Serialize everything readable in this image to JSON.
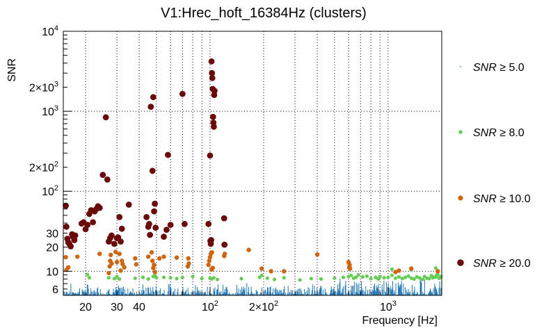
{
  "chart_data": {
    "type": "scatter",
    "title": "V1:Hrec_hoft_16384Hz (clusters)",
    "xlabel": "Frequency [Hz]",
    "ylabel": "SNR",
    "x_scale": "log",
    "y_scale": "log",
    "xlim": [
      15,
      2000
    ],
    "ylim": [
      5,
      10000
    ],
    "grid": true,
    "legend_position": "right",
    "x_tick_labels": [
      {
        "value": 20,
        "label": "20"
      },
      {
        "value": 30,
        "label": "30"
      },
      {
        "value": 40,
        "label": "40"
      },
      {
        "value": 100,
        "label": "10",
        "sup": "2"
      },
      {
        "value": 200,
        "label": "2×10",
        "sup": "2"
      },
      {
        "value": 1000,
        "label": "10",
        "sup": "3"
      }
    ],
    "y_tick_labels": [
      {
        "value": 6,
        "label": "6"
      },
      {
        "value": 10,
        "label": "10"
      },
      {
        "value": 20,
        "label": "20"
      },
      {
        "value": 30,
        "label": "30"
      },
      {
        "value": 100,
        "label": "10",
        "sup": "2"
      },
      {
        "value": 200,
        "label": "2×10",
        "sup": "2"
      },
      {
        "value": 1000,
        "label": "10",
        "sup": "3"
      },
      {
        "value": 2000,
        "label": "2×10",
        "sup": "3"
      },
      {
        "value": 10000,
        "label": "10",
        "sup": "4"
      }
    ],
    "legend": [
      {
        "label_var": "SNR",
        "label_rest": " ≥ 5.0",
        "color": "#1f77b4"
      },
      {
        "label_var": "SNR",
        "label_rest": " ≥ 8.0",
        "color": "#66cc55"
      },
      {
        "label_var": "SNR",
        "label_rest": " ≥ 10.0",
        "color": "#cc6611"
      },
      {
        "label_var": "SNR",
        "label_rest": " ≥ 20.0",
        "color": "#6b0a0a"
      }
    ],
    "series": [
      {
        "color": "#66cc55",
        "radius": 2.6,
        "points": [
          [
            20.5,
            9.1
          ],
          [
            21,
            8.3
          ],
          [
            27,
            8.3
          ],
          [
            29,
            8.1
          ],
          [
            30,
            8.6
          ],
          [
            31,
            8.0
          ],
          [
            38,
            8.2
          ],
          [
            42,
            8.4
          ],
          [
            45,
            8.0
          ],
          [
            48,
            8.6
          ],
          [
            49,
            8.9
          ],
          [
            50,
            8.3
          ],
          [
            55,
            8.4
          ],
          [
            60,
            8.3
          ],
          [
            65,
            8.1
          ],
          [
            70,
            8.4
          ],
          [
            80,
            8.6
          ],
          [
            90,
            8.1
          ],
          [
            100,
            8.2
          ],
          [
            102,
            8.0
          ],
          [
            105,
            8.3
          ],
          [
            110,
            7.9
          ],
          [
            150,
            8.1
          ],
          [
            190,
            8.4
          ],
          [
            195,
            8.9
          ],
          [
            210,
            8.2
          ],
          [
            230,
            7.9
          ],
          [
            260,
            8.3
          ],
          [
            320,
            7.8
          ],
          [
            370,
            8.1
          ],
          [
            420,
            8.0
          ],
          [
            500,
            8.2
          ],
          [
            560,
            8.4
          ],
          [
            600,
            8.6
          ],
          [
            620,
            8.9
          ],
          [
            640,
            8.2
          ],
          [
            660,
            8.4
          ],
          [
            680,
            9.0
          ],
          [
            720,
            8.5
          ],
          [
            760,
            8.7
          ],
          [
            800,
            8.1
          ],
          [
            850,
            8.4
          ],
          [
            880,
            8.0
          ],
          [
            900,
            8.6
          ],
          [
            950,
            8.3
          ],
          [
            1000,
            8.4
          ],
          [
            1050,
            8.9
          ],
          [
            1100,
            8.2
          ],
          [
            1150,
            8.5
          ],
          [
            1200,
            8.1
          ],
          [
            1250,
            8.4
          ],
          [
            1300,
            8.7
          ],
          [
            1350,
            8.2
          ],
          [
            1400,
            8.0
          ],
          [
            1450,
            8.5
          ],
          [
            1500,
            8.3
          ],
          [
            1560,
            7.9
          ],
          [
            1600,
            8.6
          ],
          [
            1650,
            8.2
          ],
          [
            1700,
            8.1
          ],
          [
            1750,
            8.8
          ],
          [
            1800,
            8.4
          ],
          [
            1850,
            8.5
          ],
          [
            1900,
            9.1
          ],
          [
            1950,
            8.3
          ],
          [
            1980,
            8.6
          ],
          [
            1050,
            10.6
          ],
          [
            1150,
            10.2
          ],
          [
            1350,
            10.4
          ],
          [
            1850,
            11.0
          ],
          [
            1780,
            8.3
          ],
          [
            1870,
            8.9
          ],
          [
            1930,
            8.2
          ]
        ]
      },
      {
        "color": "#cc6611",
        "radius": 3.2,
        "points": [
          [
            15.5,
            15
          ],
          [
            15.6,
            10.4
          ],
          [
            16,
            11.2
          ],
          [
            18,
            15.2
          ],
          [
            24,
            16.5
          ],
          [
            27,
            9.5
          ],
          [
            27.3,
            11.5
          ],
          [
            27.5,
            13.5
          ],
          [
            27.7,
            16
          ],
          [
            28,
            12.5
          ],
          [
            29.5,
            17.5
          ],
          [
            30,
            13
          ],
          [
            31,
            16.5
          ],
          [
            31.5,
            10.2
          ],
          [
            32,
            13.5
          ],
          [
            32.3,
            12.3
          ],
          [
            33,
            11.2
          ],
          [
            38,
            14.5
          ],
          [
            38.5,
            12.2
          ],
          [
            45,
            15.2
          ],
          [
            47,
            17.2
          ],
          [
            47.5,
            13.5
          ],
          [
            48,
            11
          ],
          [
            48.5,
            12
          ],
          [
            49,
            9.8
          ],
          [
            52,
            14.5
          ],
          [
            55,
            15.2
          ],
          [
            65,
            14.8
          ],
          [
            75,
            11.5
          ],
          [
            75.5,
            14.5
          ],
          [
            76,
            12.5
          ],
          [
            98,
            12
          ],
          [
            99,
            13.5
          ],
          [
            100,
            15
          ],
          [
            101,
            16.5
          ],
          [
            102,
            10.5
          ],
          [
            102.5,
            17.2
          ],
          [
            103.5,
            11
          ],
          [
            120,
            15.5
          ],
          [
            121,
            16.5
          ],
          [
            165,
            18.5
          ],
          [
            195,
            10.8
          ],
          [
            220,
            10
          ],
          [
            260,
            10
          ],
          [
            400,
            16.2
          ],
          [
            600,
            13
          ],
          [
            604,
            11.2
          ],
          [
            608,
            12
          ],
          [
            612,
            10.8
          ],
          [
            1100,
            9.8
          ],
          [
            1150,
            10.2
          ],
          [
            1350,
            10.8
          ],
          [
            1900,
            10
          ]
        ]
      },
      {
        "color": "#6b0a0a",
        "radius": 4.4,
        "points": [
          [
            15.5,
            66
          ],
          [
            15.6,
            36
          ],
          [
            15.8,
            25.5
          ],
          [
            16,
            23
          ],
          [
            16.2,
            22
          ],
          [
            16.5,
            20.5
          ],
          [
            16.8,
            29
          ],
          [
            17,
            27
          ],
          [
            17.3,
            24.5
          ],
          [
            17.5,
            28
          ],
          [
            19,
            39.5
          ],
          [
            19.5,
            41
          ],
          [
            20,
            33.5
          ],
          [
            20.5,
            38
          ],
          [
            21,
            52
          ],
          [
            21.5,
            58
          ],
          [
            22,
            41
          ],
          [
            22.5,
            56
          ],
          [
            23,
            60
          ],
          [
            23.5,
            65
          ],
          [
            24,
            62
          ],
          [
            25,
            160
          ],
          [
            26,
            840
          ],
          [
            26.5,
            140
          ],
          [
            27,
            23.5
          ],
          [
            27.5,
            26
          ],
          [
            28,
            28
          ],
          [
            29,
            22
          ],
          [
            30,
            26
          ],
          [
            30.5,
            26.5
          ],
          [
            31,
            47.5
          ],
          [
            31.5,
            23.5
          ],
          [
            32,
            34
          ],
          [
            35,
            68
          ],
          [
            44,
            47.5
          ],
          [
            45,
            36
          ],
          [
            45.5,
            39
          ],
          [
            46,
            28.5
          ],
          [
            46.5,
            1140
          ],
          [
            47.5,
            180
          ],
          [
            48,
            1500
          ],
          [
            48.5,
            56
          ],
          [
            49,
            70
          ],
          [
            49.5,
            35
          ],
          [
            55,
            27
          ],
          [
            57,
            33
          ],
          [
            58,
            285
          ],
          [
            60,
            38
          ],
          [
            70,
            1650
          ],
          [
            72,
            39
          ],
          [
            98,
            39
          ],
          [
            100,
            280
          ],
          [
            100.5,
            24
          ],
          [
            101,
            22
          ],
          [
            101.5,
            24.5
          ],
          [
            102,
            4200
          ],
          [
            102.5,
            3000
          ],
          [
            103,
            2600
          ],
          [
            103.5,
            1900
          ],
          [
            104,
            850
          ],
          [
            104.5,
            720
          ],
          [
            105,
            640
          ],
          [
            105.5,
            1600
          ],
          [
            106,
            1800
          ],
          [
            120,
            46
          ],
          [
            120.5,
            21.5
          ]
        ]
      }
    ]
  }
}
